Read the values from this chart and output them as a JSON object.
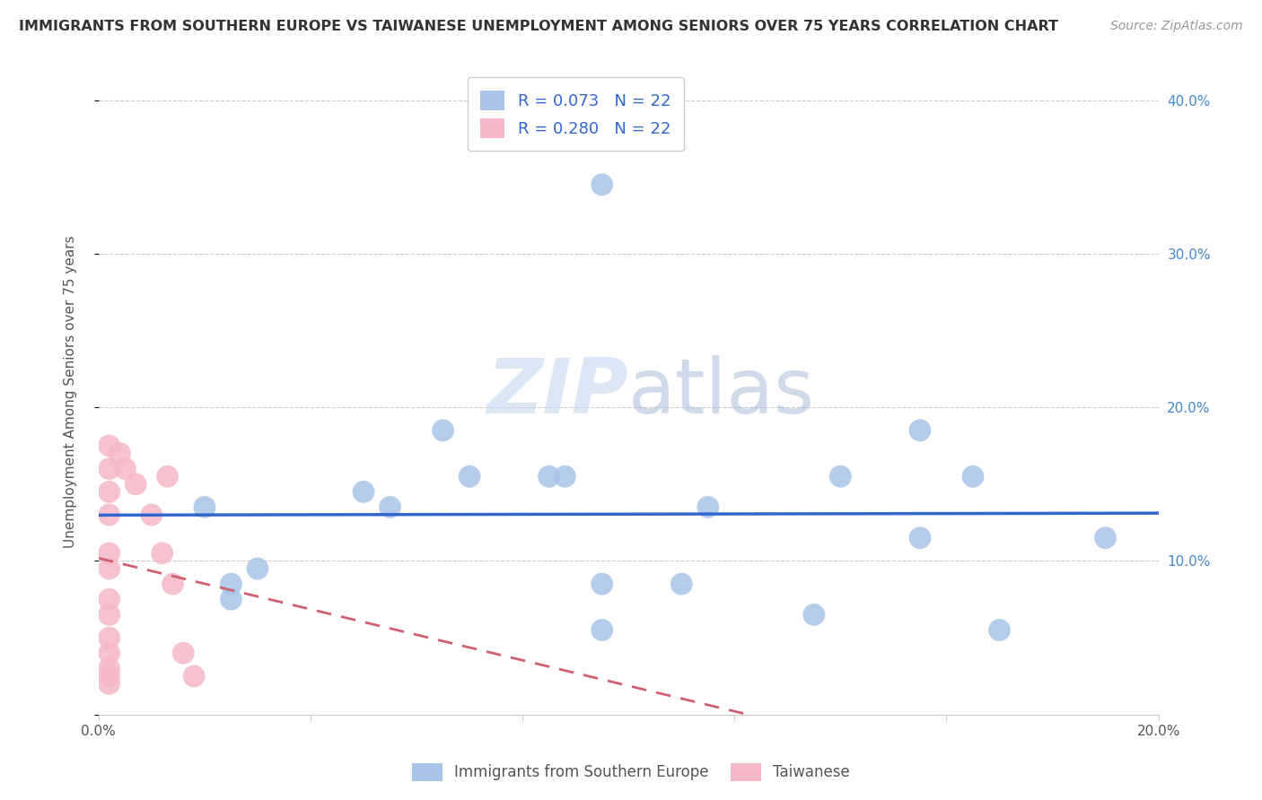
{
  "title": "IMMIGRANTS FROM SOUTHERN EUROPE VS TAIWANESE UNEMPLOYMENT AMONG SENIORS OVER 75 YEARS CORRELATION CHART",
  "source": "Source: ZipAtlas.com",
  "ylabel": "Unemployment Among Seniors over 75 years",
  "xlim": [
    0.0,
    0.2
  ],
  "ylim": [
    0.0,
    0.42
  ],
  "x_ticks": [
    0.0,
    0.04,
    0.08,
    0.12,
    0.16,
    0.2
  ],
  "x_tick_labels": [
    "0.0%",
    "",
    "",
    "",
    "",
    "20.0%"
  ],
  "y_ticks_right": [
    0.0,
    0.1,
    0.2,
    0.3,
    0.4
  ],
  "y_tick_labels_right": [
    "",
    "10.0%",
    "20.0%",
    "30.0%",
    "40.0%"
  ],
  "blue_scatter_x": [
    0.095,
    0.065,
    0.02,
    0.03,
    0.055,
    0.07,
    0.05,
    0.085,
    0.088,
    0.095,
    0.11,
    0.115,
    0.14,
    0.155,
    0.17,
    0.19,
    0.155,
    0.095,
    0.135,
    0.025,
    0.025,
    0.165
  ],
  "blue_scatter_y": [
    0.345,
    0.185,
    0.135,
    0.095,
    0.135,
    0.155,
    0.145,
    0.155,
    0.155,
    0.085,
    0.085,
    0.135,
    0.155,
    0.115,
    0.055,
    0.115,
    0.185,
    0.055,
    0.065,
    0.085,
    0.075,
    0.155
  ],
  "pink_scatter_x": [
    0.002,
    0.002,
    0.002,
    0.002,
    0.002,
    0.002,
    0.002,
    0.002,
    0.002,
    0.002,
    0.002,
    0.002,
    0.002,
    0.004,
    0.005,
    0.007,
    0.01,
    0.012,
    0.013,
    0.014,
    0.016,
    0.018
  ],
  "pink_scatter_y": [
    0.175,
    0.16,
    0.145,
    0.13,
    0.105,
    0.095,
    0.075,
    0.065,
    0.05,
    0.04,
    0.03,
    0.025,
    0.02,
    0.17,
    0.16,
    0.15,
    0.13,
    0.105,
    0.155,
    0.085,
    0.04,
    0.025
  ],
  "blue_color": "#aac4e8",
  "pink_color": "#f5b8c8",
  "blue_line_color": "#3366cc",
  "pink_line_color": "#d06070",
  "blue_R": 0.073,
  "blue_N": 22,
  "pink_R": 0.28,
  "pink_N": 22,
  "watermark_zip": "ZIP",
  "watermark_atlas": "atlas",
  "background_color": "#ffffff",
  "grid_color": "#cccccc",
  "title_color": "#333333",
  "source_color": "#999999",
  "legend_label_blue": "Immigrants from Southern Europe",
  "legend_label_pink": "Taiwanese"
}
